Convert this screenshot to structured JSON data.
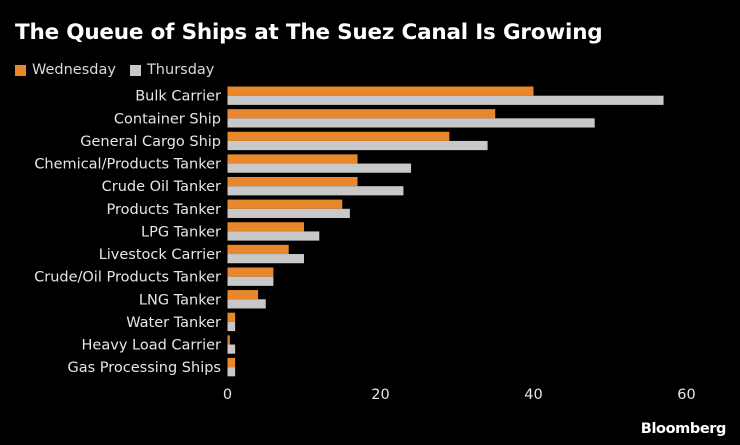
{
  "chart_data": {
    "type": "bar",
    "orientation": "horizontal",
    "title": "The Queue of Ships at The Suez Canal Is Growing",
    "categories": [
      "Bulk Carrier",
      "Container Ship",
      "General Cargo Ship",
      "Chemical/Products Tanker",
      "Crude Oil Tanker",
      "Products Tanker",
      "LPG Tanker",
      "Livestock Carrier",
      "Crude/Oil Products Tanker",
      "LNG Tanker",
      "Water Tanker",
      "Heavy Load Carrier",
      "Gas Processing Ships"
    ],
    "series": [
      {
        "name": "Wednesday",
        "color": "#e8872b",
        "values": [
          40,
          35,
          29,
          17,
          17,
          15,
          10,
          8,
          6,
          4,
          1,
          0.3,
          1
        ]
      },
      {
        "name": "Thursday",
        "color": "#c8c8c8",
        "values": [
          57,
          48,
          34,
          24,
          23,
          16,
          12,
          10,
          6,
          5,
          1,
          1,
          1
        ]
      }
    ],
    "xticks": [
      0,
      20,
      40,
      60
    ],
    "xlim": [
      0,
      60
    ],
    "xlabel": "",
    "ylabel": "",
    "grid": false,
    "legend_position": "top-left"
  },
  "source_label": "Bloomberg"
}
